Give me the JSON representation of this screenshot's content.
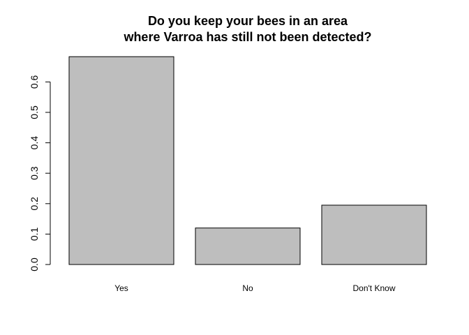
{
  "chart_data": {
    "type": "bar",
    "title_lines": [
      "Do you keep your bees in an area",
      "where Varroa has still not been detected?"
    ],
    "categories": [
      "Yes",
      "No",
      "Don't Know"
    ],
    "values": [
      0.683,
      0.12,
      0.195
    ],
    "ylim": [
      0,
      0.7
    ],
    "yticks": [
      "0.0",
      "0.1",
      "0.2",
      "0.3",
      "0.4",
      "0.5",
      "0.6"
    ],
    "bar_fill": "#bebebe",
    "bar_stroke": "#000000",
    "grid": false,
    "legend": "none"
  }
}
